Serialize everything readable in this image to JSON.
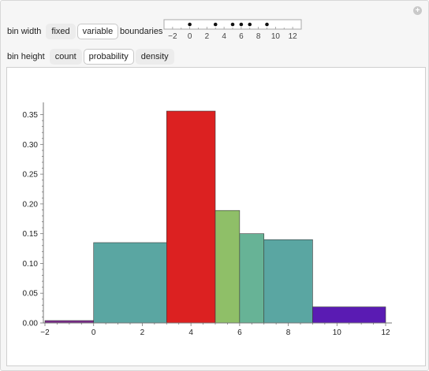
{
  "controls": {
    "bin_width_label": "bin width",
    "bin_width_options": [
      "fixed",
      "variable"
    ],
    "bin_width_selected": "variable",
    "boundaries_label": "boundaries",
    "bin_height_label": "bin height",
    "bin_height_options": [
      "count",
      "probability",
      "density"
    ],
    "bin_height_selected": "probability"
  },
  "boundaries_slider": {
    "min": -3,
    "max": 13,
    "ticks": [
      -2,
      0,
      2,
      4,
      6,
      8,
      10,
      12
    ],
    "tick_labels": [
      "−2",
      "0",
      "2",
      "4",
      "6",
      "8",
      "10",
      "12"
    ],
    "points": [
      0,
      3,
      5,
      6,
      7,
      9
    ]
  },
  "chart_data": {
    "type": "bar",
    "title": "",
    "xlabel": "",
    "ylabel": "",
    "xlim": [
      -2,
      12
    ],
    "ylim": [
      0,
      0.36
    ],
    "x_ticks": [
      -2,
      0,
      2,
      4,
      6,
      8,
      10,
      12
    ],
    "x_tick_labels": [
      "−2",
      "0",
      "2",
      "4",
      "6",
      "8",
      "10",
      "12"
    ],
    "y_ticks": [
      0,
      0.05,
      0.1,
      0.15,
      0.2,
      0.25,
      0.3,
      0.35
    ],
    "y_tick_labels": [
      "0.00",
      "0.05",
      "0.10",
      "0.15",
      "0.20",
      "0.25",
      "0.30",
      "0.35"
    ],
    "bins": [
      {
        "x0": -2,
        "x1": 0,
        "value": 0.004,
        "color": "#7a2a8a"
      },
      {
        "x0": 0,
        "x1": 3,
        "value": 0.135,
        "color": "#5aa6a2"
      },
      {
        "x0": 3,
        "x1": 5,
        "value": 0.356,
        "color": "#dc2121"
      },
      {
        "x0": 5,
        "x1": 6,
        "value": 0.189,
        "color": "#8fbf68"
      },
      {
        "x0": 6,
        "x1": 7,
        "value": 0.15,
        "color": "#67b396"
      },
      {
        "x0": 7,
        "x1": 9,
        "value": 0.14,
        "color": "#5aa6a2"
      },
      {
        "x0": 9,
        "x1": 12,
        "value": 0.027,
        "color": "#5a1bb3"
      }
    ]
  }
}
